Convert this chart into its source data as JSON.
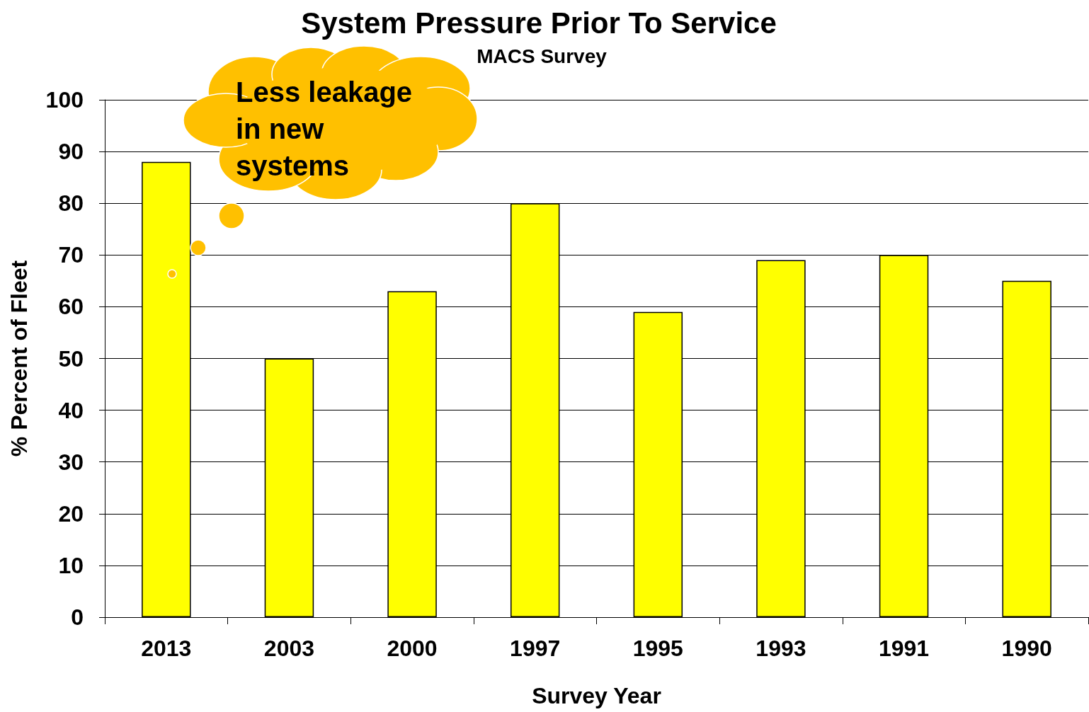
{
  "chart_data": {
    "type": "bar",
    "title": "System Pressure Prior To Service",
    "subtitle": "MACS Survey",
    "xlabel": "Survey Year",
    "ylabel": "% Percent of Fleet",
    "categories": [
      "2013",
      "2003",
      "2000",
      "1997",
      "1995",
      "1993",
      "1991",
      "1990"
    ],
    "values": [
      88,
      50,
      63,
      80,
      59,
      69,
      70,
      65
    ],
    "color": "#ffff00",
    "ylim": [
      0,
      100
    ],
    "yticks": [
      0,
      10,
      20,
      30,
      40,
      50,
      60,
      70,
      80,
      90,
      100
    ],
    "grid": "y",
    "annotations": [
      "Less leakage in new systems"
    ]
  }
}
